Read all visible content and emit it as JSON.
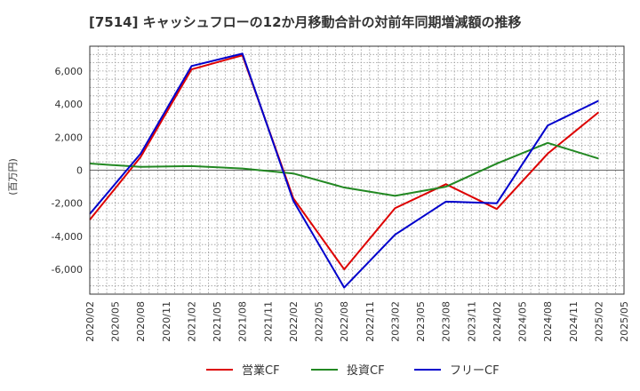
{
  "chart_data": {
    "type": "line",
    "title": "[7514]  キャッシュフローの12か月移動合計の対前年同期増減額の推移",
    "ylabel": "(百万円)",
    "xlabel": "",
    "ylim": [
      -7500,
      7500
    ],
    "y_ticks": [
      6000,
      4000,
      2000,
      0,
      -2000,
      -4000,
      -6000
    ],
    "y_tick_labels": [
      "6,000",
      "4,000",
      "2,000",
      "0",
      "-2,000",
      "-4,000",
      "-6,000"
    ],
    "x_tick_labels": [
      "2020/02",
      "2020/05",
      "2020/08",
      "2020/11",
      "2021/02",
      "2021/05",
      "2021/08",
      "2021/11",
      "2022/02",
      "2022/05",
      "2022/08",
      "2022/11",
      "2023/02",
      "2023/05",
      "2023/08",
      "2023/11",
      "2024/02",
      "2024/05",
      "2024/08",
      "2024/11",
      "2025/02",
      "2025/05"
    ],
    "grid": true,
    "legend_position": "bottom",
    "series": [
      {
        "name": "営業CF",
        "color": "#dd0000",
        "x": [
          "2020/02",
          "2020/08",
          "2021/02",
          "2021/08",
          "2022/02",
          "2022/08",
          "2023/02",
          "2023/08",
          "2024/02",
          "2024/08",
          "2025/02"
        ],
        "values": [
          -3000,
          800,
          6100,
          6950,
          -1700,
          -6000,
          -2300,
          -850,
          -2350,
          1000,
          3500
        ]
      },
      {
        "name": "投資CF",
        "color": "#228822",
        "x": [
          "2020/02",
          "2020/08",
          "2021/02",
          "2021/08",
          "2022/02",
          "2022/08",
          "2023/02",
          "2023/08",
          "2024/02",
          "2024/08",
          "2025/02"
        ],
        "values": [
          400,
          200,
          250,
          100,
          -200,
          -1050,
          -1550,
          -1000,
          400,
          1650,
          700
        ]
      },
      {
        "name": "フリーCF",
        "color": "#0000cc",
        "x": [
          "2020/02",
          "2020/08",
          "2021/02",
          "2021/08",
          "2022/02",
          "2022/08",
          "2023/02",
          "2023/08",
          "2024/02",
          "2024/08",
          "2025/02"
        ],
        "values": [
          -2650,
          1000,
          6300,
          7050,
          -1850,
          -7100,
          -3900,
          -1900,
          -2000,
          2700,
          4200
        ]
      }
    ]
  }
}
